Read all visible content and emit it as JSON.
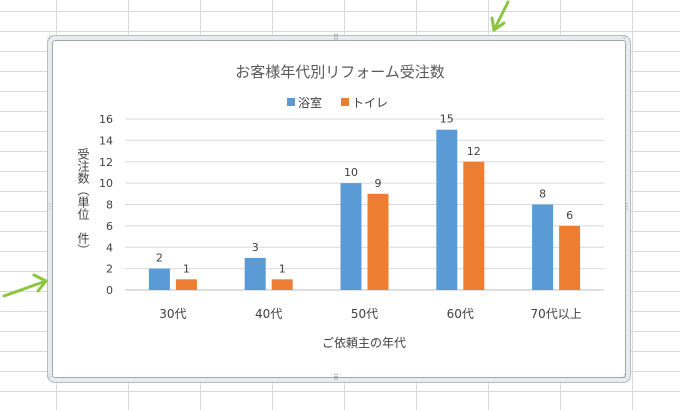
{
  "chart_data": {
    "type": "bar",
    "title": "お客様年代別リフォーム受注数",
    "xlabel": "ご依頼主の年代",
    "ylabel": "受注数（単位　件）",
    "categories": [
      "30代",
      "40代",
      "50代",
      "60代",
      "70代以上"
    ],
    "series": [
      {
        "name": "浴室",
        "values": [
          2,
          3,
          10,
          15,
          8
        ],
        "color": "#5b9bd5"
      },
      {
        "name": "トイレ",
        "values": [
          1,
          1,
          9,
          12,
          6
        ],
        "color": "#ed7d31"
      }
    ],
    "ylim": [
      0,
      16
    ],
    "yticks": [
      "0",
      "2",
      "4",
      "6",
      "8",
      "10",
      "12",
      "14",
      "16"
    ],
    "grid": true,
    "legend": "top",
    "data_labels": true
  },
  "colors": {
    "gridline": "#d9d9d9",
    "annotation_arrow": "#8cc63f",
    "text": "#404040",
    "title": "#595959"
  }
}
